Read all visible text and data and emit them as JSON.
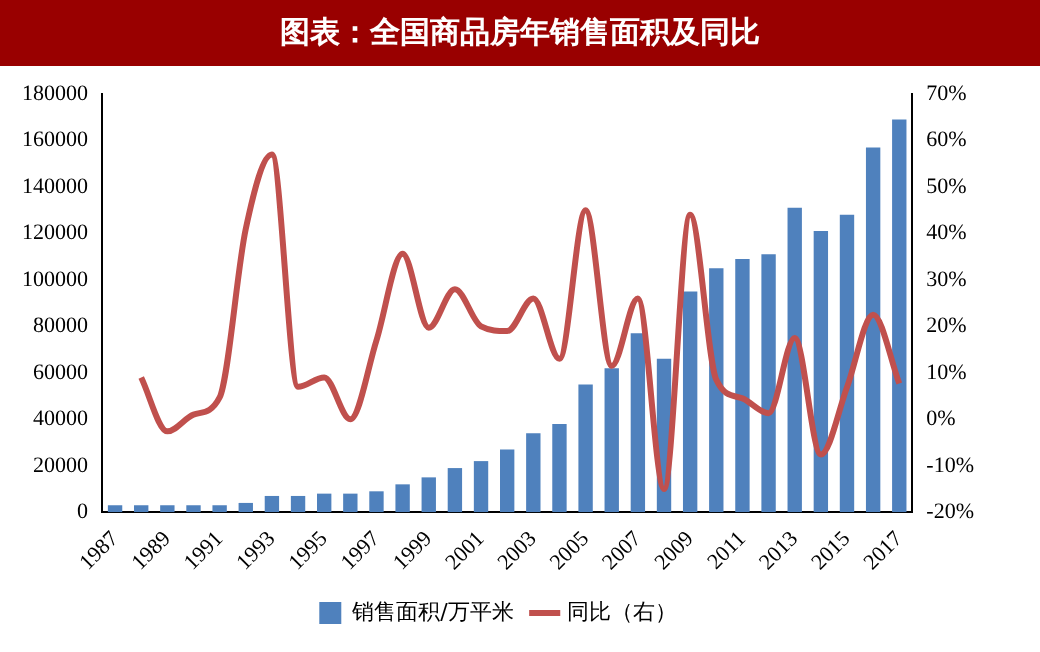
{
  "chart_data": {
    "type": "bar",
    "title": "图表：全国商品房年销售面积及同比",
    "categories": [
      "1987",
      null,
      "1989",
      null,
      "1991",
      null,
      "1993",
      null,
      "1995",
      null,
      "1997",
      null,
      "1999",
      null,
      "2001",
      null,
      "2003",
      null,
      "2005",
      null,
      "2007",
      null,
      "2009",
      null,
      "2011",
      null,
      "2013",
      null,
      "2015",
      null,
      "2017"
    ],
    "series": [
      {
        "name": "销售面积/万平米",
        "color": "#4f81bd",
        "values": [
          3000,
          3000,
          3000,
          3000,
          3000,
          4000,
          7000,
          7000,
          8000,
          8000,
          9000,
          12000,
          15000,
          19000,
          22000,
          27000,
          34000,
          38000,
          55000,
          62000,
          77000,
          66000,
          95000,
          105000,
          109000,
          111000,
          131000,
          121000,
          128000,
          157000,
          169000
        ]
      },
      {
        "name": "同比（右）",
        "type": "line",
        "axis": "y2",
        "color": "#c0504d",
        "values": [
          null,
          9,
          -2.6,
          1,
          4.7,
          41,
          57,
          7,
          9,
          0,
          17,
          35.6,
          19.7,
          28,
          20,
          19,
          26,
          13,
          45,
          11.5,
          26,
          -15,
          44,
          8.5,
          4.5,
          1.3,
          17.5,
          -7.6,
          6.9,
          22.5,
          7.7
        ]
      }
    ],
    "ylim": [
      0,
      180000
    ],
    "yticks": [
      0,
      20000,
      40000,
      60000,
      80000,
      100000,
      120000,
      140000,
      160000,
      180000
    ],
    "y2lim": [
      -20,
      70
    ],
    "y2ticks": [
      {
        "value": -20,
        "label": "-20%"
      },
      {
        "value": -10,
        "label": "-10%"
      },
      {
        "value": 0,
        "label": "0%"
      },
      {
        "value": 10,
        "label": "10%"
      },
      {
        "value": 20,
        "label": "20%"
      },
      {
        "value": 30,
        "label": "30%"
      },
      {
        "value": 40,
        "label": "40%"
      },
      {
        "value": 50,
        "label": "50%"
      },
      {
        "value": 60,
        "label": "60%"
      },
      {
        "value": 70,
        "label": "70%"
      }
    ],
    "grid": false,
    "legend": "bottom",
    "marker": "none",
    "line_style": "solid"
  }
}
